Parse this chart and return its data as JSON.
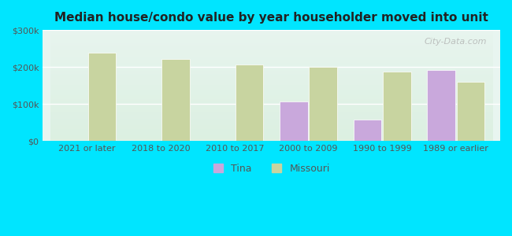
{
  "title": "Median house/condo value by year householder moved into unit",
  "categories": [
    "2021 or later",
    "2018 to 2020",
    "2010 to 2017",
    "2000 to 2009",
    "1990 to 1999",
    "1989 or earlier"
  ],
  "tina_values": [
    null,
    null,
    null,
    107000,
    58000,
    192000
  ],
  "missouri_values": [
    238000,
    221000,
    207000,
    200000,
    187000,
    161000
  ],
  "tina_color": "#c9a8dc",
  "missouri_color": "#c8d4a0",
  "background_outer": "#00e5ff",
  "background_inner_top": "#e8f5f0",
  "background_inner_bottom": "#d8f0e8",
  "ylim": [
    0,
    300000
  ],
  "yticks": [
    0,
    100000,
    200000,
    300000
  ],
  "ytick_labels": [
    "$0",
    "$100k",
    "$200k",
    "$300k"
  ],
  "bar_width": 0.38,
  "legend_labels": [
    "Tina",
    "Missouri"
  ],
  "watermark": "City-Data.com"
}
